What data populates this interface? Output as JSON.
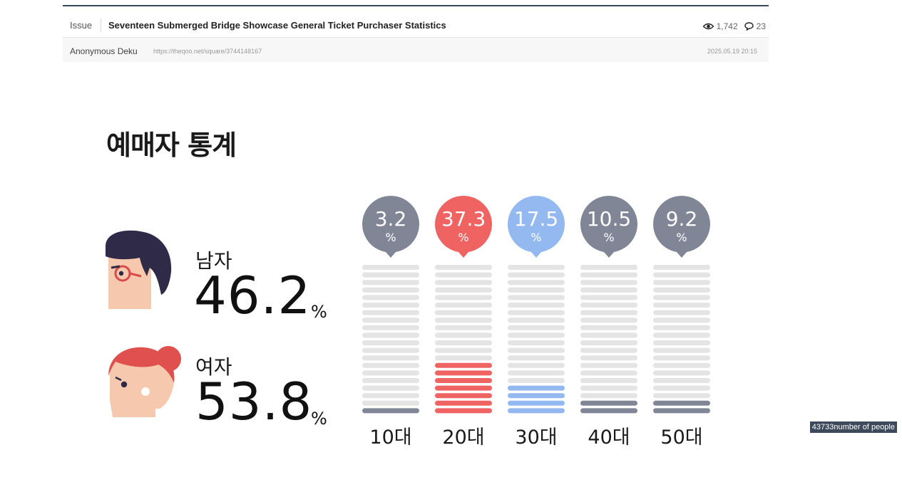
{
  "post": {
    "category": "Issue",
    "title": "Seventeen Submerged Bridge Showcase General Ticket Purchaser Statistics",
    "views": "1,742",
    "comments": "23",
    "author": "Anonymous Deku",
    "url": "https://theqoo.net/square/3744148167",
    "date": "2025.05.19 20:15"
  },
  "infographic": {
    "heading": "예매자 통계",
    "gender": [
      {
        "label": "남자",
        "percent": "46.2",
        "unit": "%"
      },
      {
        "label": "여자",
        "percent": "53.8",
        "unit": "%"
      }
    ],
    "ages": [
      {
        "label": "10대",
        "percent": "3.2",
        "filled_segments": 1,
        "color": "#808696"
      },
      {
        "label": "20대",
        "percent": "37.3",
        "filled_segments": 7,
        "color": "#f06363"
      },
      {
        "label": "30대",
        "percent": "17.5",
        "filled_segments": 4,
        "color": "#93b9f0"
      },
      {
        "label": "40대",
        "percent": "10.5",
        "filled_segments": 2,
        "color": "#808696"
      },
      {
        "label": "50대",
        "percent": "9.2",
        "filled_segments": 2,
        "color": "#808696"
      }
    ],
    "unit": "%",
    "total_segments": 20,
    "empty_color": "#e4e4e4"
  },
  "badge": "43733number of people"
}
